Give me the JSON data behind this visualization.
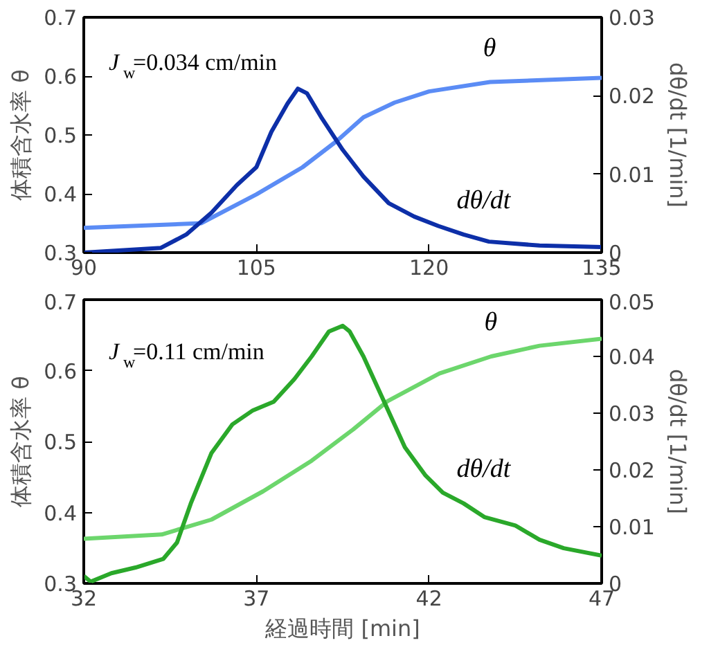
{
  "chart_data": [
    {
      "type": "line",
      "ylabel": "体積含水率 θ",
      "y2label": "dθ/dt [1/min]",
      "xlim": [
        90,
        135
      ],
      "xticks": [
        90,
        105,
        120,
        135
      ],
      "ylim": [
        0.3,
        0.7
      ],
      "yticks": [
        0.3,
        0.4,
        0.5,
        0.6,
        0.7
      ],
      "y2lim": [
        0,
        0.03
      ],
      "y2ticks": [
        0,
        0.01,
        0.02,
        0.03
      ],
      "annotations": [
        "J$_{w}$=0.034 cm/min"
      ],
      "series": [
        {
          "name": "θ",
          "color": "#5b8cf5",
          "x": [
            90,
            100.2,
            105,
            109,
            112,
            114.3,
            117,
            120,
            125.3,
            135
          ],
          "values": [
            0.342,
            0.35,
            0.399,
            0.445,
            0.49,
            0.53,
            0.555,
            0.574,
            0.59,
            0.597
          ]
        },
        {
          "name": "dθ/dt",
          "color": "#0d2fa8",
          "axis": "y2",
          "x": [
            90,
            96.7,
            98.9,
            101.1,
            103.3,
            105,
            106.3,
            107.7,
            108.6,
            109.4,
            110.7,
            112.5,
            114.3,
            116.5,
            118.7,
            120.8,
            123,
            125.2,
            129.6,
            135
          ],
          "values": [
            0,
            0.0006,
            0.0023,
            0.0051,
            0.0086,
            0.0109,
            0.0154,
            0.019,
            0.0209,
            0.0203,
            0.0171,
            0.0131,
            0.0097,
            0.0063,
            0.0046,
            0.0034,
            0.0023,
            0.0014,
            0.0009,
            0.0007
          ]
        }
      ]
    },
    {
      "type": "line",
      "xlabel": "経過時間 [min]",
      "ylabel": "体積含水率 θ",
      "y2label": "dθ/dt [1/min]",
      "xlim": [
        32,
        47
      ],
      "xticks": [
        32,
        37,
        42,
        47
      ],
      "ylim": [
        0.3,
        0.7
      ],
      "yticks": [
        0.3,
        0.4,
        0.5,
        0.6,
        0.7
      ],
      "y2lim": [
        0,
        0.05
      ],
      "y2ticks": [
        0,
        0.01,
        0.02,
        0.03,
        0.04,
        0.05
      ],
      "annotations": [
        "J$_{w}$=0.11 cm/min"
      ],
      "series": [
        {
          "name": "θ",
          "color": "#6cd66c",
          "x": [
            32,
            34.26,
            35.7,
            37.2,
            38.6,
            39.8,
            40.8,
            42.3,
            43.8,
            45.2,
            47
          ],
          "values": [
            0.363,
            0.369,
            0.39,
            0.43,
            0.473,
            0.517,
            0.557,
            0.596,
            0.62,
            0.635,
            0.645
          ]
        },
        {
          "name": "dθ/dt",
          "color": "#2aa82a",
          "axis": "y2",
          "x": [
            32,
            32.2,
            32.8,
            33.5,
            34.3,
            34.7,
            35.1,
            35.7,
            36.3,
            36.9,
            37.5,
            38.1,
            38.6,
            39.1,
            39.5,
            39.7,
            40.1,
            40.7,
            41.3,
            41.9,
            42.4,
            43.0,
            43.6,
            44.5,
            45.2,
            45.9,
            47
          ],
          "values": [
            0.0013,
            0.0003,
            0.0018,
            0.0028,
            0.0043,
            0.0072,
            0.0141,
            0.023,
            0.028,
            0.0305,
            0.032,
            0.036,
            0.04,
            0.0444,
            0.0454,
            0.0444,
            0.04,
            0.032,
            0.024,
            0.019,
            0.016,
            0.0141,
            0.0117,
            0.0102,
            0.0077,
            0.0062,
            0.0049
          ]
        }
      ]
    }
  ]
}
